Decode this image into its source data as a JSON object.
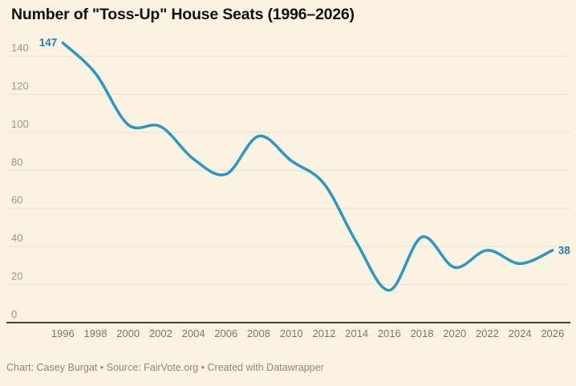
{
  "title": "Number of \"Toss-Up\" House Seats (1996–2026)",
  "footer": "Chart: Casey Burgat • Source: FairVote.org • Created with Datawrapper",
  "chart_data": {
    "type": "line",
    "title": "Number of \"Toss-Up\" House Seats (1996–2026)",
    "x": [
      1996,
      1998,
      2000,
      2002,
      2004,
      2006,
      2008,
      2010,
      2012,
      2014,
      2016,
      2018,
      2020,
      2022,
      2024,
      2026
    ],
    "values": [
      147,
      131,
      104,
      103,
      86,
      78,
      98,
      85,
      73,
      42,
      17,
      45,
      29,
      38,
      31,
      38
    ],
    "x_tick_labels": [
      "1996",
      "1998",
      "2000",
      "2002",
      "2004",
      "2006",
      "2008",
      "2010",
      "2012",
      "2014",
      "2016",
      "2018",
      "2020",
      "2022",
      "2024",
      "2026"
    ],
    "y_ticks": [
      0,
      20,
      40,
      60,
      80,
      100,
      120,
      140
    ],
    "ylim": [
      0,
      150
    ],
    "xlabel": "",
    "ylabel": "",
    "grid": "horizontal",
    "legend": "none",
    "curve": "smooth",
    "first_point_label": "147",
    "last_point_label": "38"
  },
  "colors": {
    "background": "#fbf2e2",
    "line": "#2b98c3",
    "point_label": "#1c82b0",
    "grid": "#eae1ce",
    "baseline": "#46423a",
    "y_tick_text": "#9b978c",
    "x_tick_text": "#7c786c",
    "title_text": "#121212",
    "footer_text": "#8f897c"
  }
}
